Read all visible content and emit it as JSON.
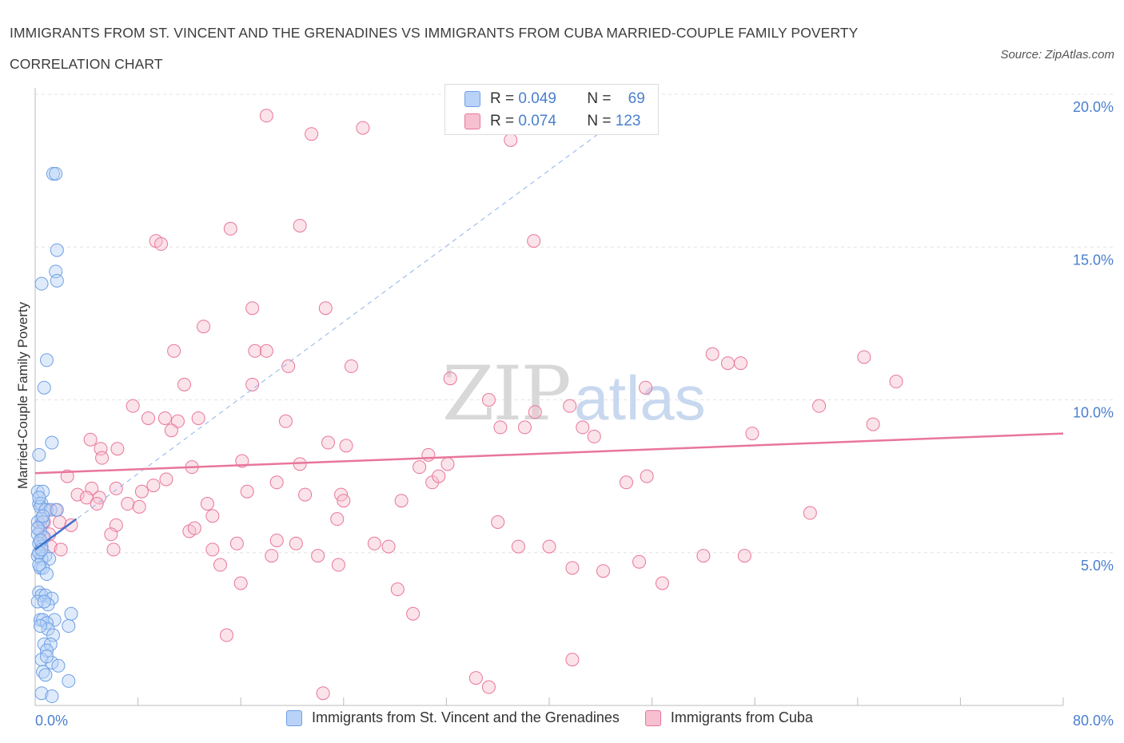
{
  "title": "IMMIGRANTS FROM ST. VINCENT AND THE GRENADINES VS IMMIGRANTS FROM CUBA MARRIED-COUPLE FAMILY POVERTY CORRELATION CHART",
  "source": "Source: ZipAtlas.com",
  "watermark": {
    "zip": "ZIP",
    "atlas": "atlas"
  },
  "colors": {
    "blue": "#6f9fe6",
    "blue_fill": "#b9d2f7",
    "pink": "#e8769a",
    "pink_fill": "#f6c0d0",
    "tick": "#4a7fcf"
  },
  "legend_box": {
    "rows": [
      {
        "r_label": "R =",
        "r_value": "0.049",
        "n_label": "N =",
        "n_value": "69"
      },
      {
        "r_label": "R =",
        "r_value": "0.074",
        "n_label": "N =",
        "n_value": "123"
      }
    ]
  },
  "chart_data": {
    "type": "scatter",
    "title": "IMMIGRANTS FROM ST. VINCENT AND THE GRENADINES VS IMMIGRANTS FROM CUBA MARRIED-COUPLE FAMILY POVERTY CORRELATION CHART",
    "xlabel": "",
    "ylabel": "Married-Couple Family Poverty",
    "xlim": [
      0,
      80
    ],
    "ylim": [
      0,
      20
    ],
    "x_tick_labels": [
      "0.0%",
      "80.0%"
    ],
    "y_ticks": [
      5,
      10,
      15,
      20
    ],
    "y_tick_labels": [
      "5.0%",
      "10.0%",
      "15.0%",
      "20.0%"
    ],
    "grid": true,
    "legend_position": "bottom",
    "series": [
      {
        "name": "Immigrants from St. Vincent and the Grenadines",
        "color": "#6f9fe6",
        "trend": {
          "x": [
            0,
            3.2
          ],
          "y": [
            5.1,
            6.1
          ]
        },
        "dashed_trend": {
          "x": [
            0,
            48
          ],
          "y": [
            5.1,
            20.0
          ]
        },
        "points": [
          [
            1.4,
            17.4
          ],
          [
            1.6,
            17.4
          ],
          [
            1.7,
            14.9
          ],
          [
            1.6,
            14.2
          ],
          [
            1.7,
            13.9
          ],
          [
            0.5,
            13.8
          ],
          [
            0.9,
            11.3
          ],
          [
            0.7,
            10.4
          ],
          [
            1.3,
            8.6
          ],
          [
            0.3,
            8.2
          ],
          [
            0.2,
            7.0
          ],
          [
            0.6,
            7.0
          ],
          [
            0.3,
            6.6
          ],
          [
            0.5,
            6.6
          ],
          [
            0.4,
            6.5
          ],
          [
            0.8,
            6.4
          ],
          [
            1.2,
            6.4
          ],
          [
            1.7,
            6.4
          ],
          [
            0.5,
            6.1
          ],
          [
            0.2,
            6.0
          ],
          [
            0.6,
            6.0
          ],
          [
            0.4,
            5.7
          ],
          [
            0.2,
            5.6
          ],
          [
            0.7,
            5.5
          ],
          [
            0.3,
            5.3
          ],
          [
            0.5,
            5.2
          ],
          [
            0.3,
            5.0
          ],
          [
            0.2,
            4.9
          ],
          [
            0.8,
            4.9
          ],
          [
            0.5,
            4.8
          ],
          [
            1.1,
            4.8
          ],
          [
            0.4,
            4.5
          ],
          [
            0.6,
            4.5
          ],
          [
            0.9,
            4.3
          ],
          [
            0.3,
            3.7
          ],
          [
            0.5,
            3.6
          ],
          [
            0.8,
            3.6
          ],
          [
            1.3,
            3.5
          ],
          [
            0.2,
            3.4
          ],
          [
            1.0,
            3.3
          ],
          [
            2.8,
            3.0
          ],
          [
            0.4,
            2.8
          ],
          [
            0.6,
            2.8
          ],
          [
            1.5,
            2.8
          ],
          [
            0.9,
            2.7
          ],
          [
            2.6,
            2.6
          ],
          [
            1.0,
            2.5
          ],
          [
            1.4,
            2.3
          ],
          [
            0.7,
            2.0
          ],
          [
            1.2,
            2.0
          ],
          [
            0.9,
            1.8
          ],
          [
            0.5,
            1.5
          ],
          [
            1.3,
            1.4
          ],
          [
            1.8,
            1.3
          ],
          [
            0.6,
            1.1
          ],
          [
            0.8,
            1.0
          ],
          [
            2.6,
            0.8
          ],
          [
            0.5,
            0.4
          ],
          [
            1.3,
            0.3
          ],
          [
            0.3,
            5.0
          ],
          [
            0.4,
            5.4
          ],
          [
            0.2,
            5.8
          ],
          [
            0.6,
            6.2
          ],
          [
            0.3,
            4.6
          ],
          [
            0.7,
            3.4
          ],
          [
            0.4,
            2.6
          ],
          [
            0.9,
            1.6
          ],
          [
            0.3,
            6.8
          ],
          [
            0.5,
            5.1
          ]
        ]
      },
      {
        "name": "Immigrants from Cuba",
        "color": "#e8769a",
        "trend": {
          "x": [
            0,
            80
          ],
          "y": [
            7.6,
            8.9
          ]
        },
        "points": [
          [
            18.0,
            19.3
          ],
          [
            21.5,
            18.7
          ],
          [
            25.5,
            18.9
          ],
          [
            37.0,
            18.5
          ],
          [
            20.6,
            15.7
          ],
          [
            15.2,
            15.6
          ],
          [
            9.4,
            15.2
          ],
          [
            9.8,
            15.1
          ],
          [
            38.8,
            15.2
          ],
          [
            13.1,
            12.4
          ],
          [
            16.9,
            13.0
          ],
          [
            22.6,
            13.0
          ],
          [
            10.8,
            11.6
          ],
          [
            17.1,
            11.6
          ],
          [
            18.0,
            11.6
          ],
          [
            24.6,
            11.1
          ],
          [
            19.7,
            11.1
          ],
          [
            52.7,
            11.5
          ],
          [
            53.9,
            11.2
          ],
          [
            54.9,
            11.2
          ],
          [
            64.5,
            11.4
          ],
          [
            67.0,
            10.6
          ],
          [
            11.6,
            10.5
          ],
          [
            16.9,
            10.5
          ],
          [
            32.3,
            10.7
          ],
          [
            47.5,
            10.4
          ],
          [
            7.6,
            9.8
          ],
          [
            35.3,
            10.0
          ],
          [
            41.6,
            9.8
          ],
          [
            61.0,
            9.8
          ],
          [
            8.8,
            9.4
          ],
          [
            10.1,
            9.4
          ],
          [
            11.1,
            9.3
          ],
          [
            12.7,
            9.4
          ],
          [
            19.5,
            9.3
          ],
          [
            36.2,
            9.1
          ],
          [
            38.1,
            9.1
          ],
          [
            38.9,
            9.6
          ],
          [
            42.6,
            9.1
          ],
          [
            65.2,
            9.2
          ],
          [
            10.6,
            9.0
          ],
          [
            43.5,
            8.8
          ],
          [
            55.8,
            8.9
          ],
          [
            4.3,
            8.7
          ],
          [
            6.4,
            8.4
          ],
          [
            22.8,
            8.6
          ],
          [
            24.2,
            8.5
          ],
          [
            5.1,
            8.4
          ],
          [
            5.2,
            8.1
          ],
          [
            16.1,
            8.0
          ],
          [
            30.6,
            8.2
          ],
          [
            12.2,
            7.8
          ],
          [
            20.6,
            7.9
          ],
          [
            32.1,
            7.9
          ],
          [
            29.9,
            7.8
          ],
          [
            2.5,
            7.5
          ],
          [
            10.2,
            7.4
          ],
          [
            18.8,
            7.3
          ],
          [
            30.9,
            7.3
          ],
          [
            31.4,
            7.5
          ],
          [
            46.0,
            7.3
          ],
          [
            47.6,
            7.5
          ],
          [
            4.4,
            7.1
          ],
          [
            6.3,
            7.1
          ],
          [
            8.3,
            7.0
          ],
          [
            9.2,
            7.2
          ],
          [
            16.5,
            7.0
          ],
          [
            3.3,
            6.9
          ],
          [
            4.0,
            6.8
          ],
          [
            5.0,
            6.8
          ],
          [
            23.8,
            6.9
          ],
          [
            24.0,
            6.7
          ],
          [
            21.0,
            6.9
          ],
          [
            28.5,
            6.7
          ],
          [
            7.2,
            6.6
          ],
          [
            13.4,
            6.6
          ],
          [
            4.8,
            6.6
          ],
          [
            8.1,
            6.5
          ],
          [
            1.6,
            6.4
          ],
          [
            0.9,
            6.4
          ],
          [
            13.8,
            6.2
          ],
          [
            23.5,
            6.1
          ],
          [
            1.9,
            6.0
          ],
          [
            2.8,
            5.9
          ],
          [
            6.3,
            5.9
          ],
          [
            36.0,
            6.0
          ],
          [
            60.3,
            6.3
          ],
          [
            5.9,
            5.6
          ],
          [
            12.0,
            5.7
          ],
          [
            12.4,
            5.8
          ],
          [
            1.1,
            5.6
          ],
          [
            0.6,
            5.5
          ],
          [
            15.7,
            5.3
          ],
          [
            18.8,
            5.4
          ],
          [
            20.3,
            5.3
          ],
          [
            26.4,
            5.3
          ],
          [
            27.5,
            5.2
          ],
          [
            1.2,
            5.2
          ],
          [
            2.0,
            5.1
          ],
          [
            6.1,
            5.1
          ],
          [
            13.8,
            5.1
          ],
          [
            18.4,
            4.9
          ],
          [
            22.0,
            4.9
          ],
          [
            37.6,
            5.2
          ],
          [
            40.0,
            5.2
          ],
          [
            52.0,
            4.9
          ],
          [
            55.2,
            4.9
          ],
          [
            23.6,
            4.6
          ],
          [
            14.4,
            4.6
          ],
          [
            41.8,
            4.5
          ],
          [
            44.2,
            4.4
          ],
          [
            47.0,
            4.7
          ],
          [
            48.8,
            4.0
          ],
          [
            16.0,
            4.0
          ],
          [
            28.2,
            3.8
          ],
          [
            29.4,
            3.0
          ],
          [
            14.9,
            2.3
          ],
          [
            41.8,
            1.5
          ],
          [
            34.3,
            0.9
          ],
          [
            35.3,
            0.6
          ],
          [
            22.4,
            0.4
          ],
          [
            0.4,
            5.9
          ],
          [
            0.7,
            6.0
          ]
        ]
      }
    ]
  }
}
